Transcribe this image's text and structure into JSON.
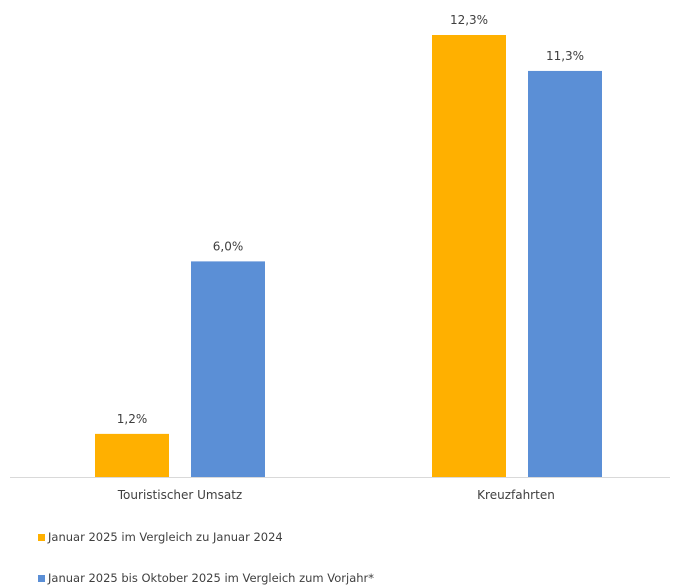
{
  "colors": {
    "series1": "#FFB000",
    "series2": "#5B8FD6",
    "axis": "#D9D9D9"
  },
  "chart_data": {
    "type": "bar",
    "categories": [
      "Touristischer Umsatz",
      "Kreuzfahrten"
    ],
    "series": [
      {
        "name": "Januar 2025 im Vergleich zu Januar 2024",
        "values": [
          1.2,
          12.3
        ],
        "labels": [
          "1,2%",
          "12,3%"
        ]
      },
      {
        "name": "Januar 2025 bis Oktober 2025 im Vergleich zum Vorjahr*",
        "values": [
          6.0,
          11.3
        ],
        "labels": [
          "6,0%",
          "11,3%"
        ]
      }
    ],
    "ylim": [
      0,
      12.3
    ],
    "grid": false,
    "legend_position": "bottom-left"
  }
}
